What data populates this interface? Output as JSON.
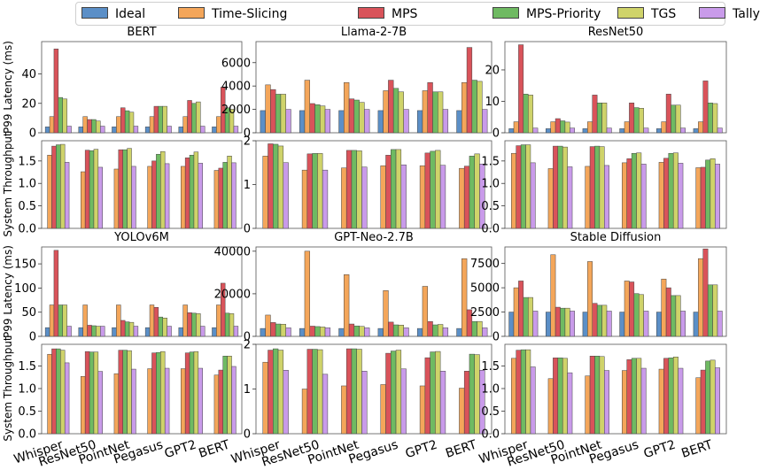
{
  "legend": {
    "items": [
      {
        "label": "Ideal",
        "color": "#5b8fc7"
      },
      {
        "label": "Time-Slicing",
        "color": "#f4a65a"
      },
      {
        "label": "MPS",
        "color": "#d9535a"
      },
      {
        "label": "MPS-Priority",
        "color": "#6fba62"
      },
      {
        "label": "TGS",
        "color": "#cfd36a"
      },
      {
        "label": "Tally",
        "color": "#c99bea"
      }
    ]
  },
  "shared_labels": {
    "latency_ylabel": "P99 Latency (ms)",
    "throughput_ylabel": "System Throughput"
  },
  "chart_data": [
    {
      "type": "bar",
      "metric": "latency",
      "title": "BERT",
      "categories": [
        "Whisper",
        "ResNet50",
        "PointNet",
        "Pegasus",
        "GPT2",
        "BERT"
      ],
      "ylim": [
        0,
        62
      ],
      "yticks": [
        0,
        20,
        40
      ],
      "series": [
        {
          "name": "Ideal",
          "values": [
            4,
            4,
            4,
            4,
            4,
            4
          ]
        },
        {
          "name": "Time-Slicing",
          "values": [
            11,
            11,
            11,
            11,
            11,
            11
          ]
        },
        {
          "name": "MPS",
          "values": [
            57,
            9,
            17,
            18,
            22,
            31
          ]
        },
        {
          "name": "MPS-Priority",
          "values": [
            24,
            9,
            15,
            18,
            20,
            17
          ]
        },
        {
          "name": "TGS",
          "values": [
            23,
            8,
            14,
            18,
            21,
            16
          ]
        },
        {
          "name": "Tally",
          "values": [
            4.5,
            4.5,
            4.5,
            4.5,
            4.5,
            4.5
          ]
        }
      ]
    },
    {
      "type": "bar",
      "metric": "latency",
      "title": "Llama-2-7B",
      "categories": [
        "Whisper",
        "ResNet50",
        "PointNet",
        "Pegasus",
        "GPT2",
        "BERT"
      ],
      "ylim": [
        0,
        7800
      ],
      "yticks": [
        0,
        2000,
        4000,
        6000
      ],
      "series": [
        {
          "name": "Ideal",
          "values": [
            1900,
            1900,
            1900,
            1900,
            1900,
            1900
          ]
        },
        {
          "name": "Time-Slicing",
          "values": [
            4100,
            4500,
            4300,
            3600,
            3600,
            4300
          ]
        },
        {
          "name": "MPS",
          "values": [
            3700,
            2500,
            2900,
            4500,
            4300,
            7300
          ]
        },
        {
          "name": "MPS-Priority",
          "values": [
            3300,
            2400,
            2800,
            3800,
            3500,
            4500
          ]
        },
        {
          "name": "TGS",
          "values": [
            3300,
            2300,
            2600,
            3500,
            3500,
            4400
          ]
        },
        {
          "name": "Tally",
          "values": [
            2000,
            2000,
            2000,
            2000,
            2000,
            2000
          ]
        }
      ]
    },
    {
      "type": "bar",
      "metric": "latency",
      "title": "ResNet50",
      "categories": [
        "Whisper",
        "ResNet50",
        "PointNet",
        "Pegasus",
        "GPT2",
        "BERT"
      ],
      "ylim": [
        0,
        29
      ],
      "yticks": [
        0,
        10,
        20
      ],
      "series": [
        {
          "name": "Ideal",
          "values": [
            1.3,
            1.3,
            1.3,
            1.3,
            1.3,
            1.3
          ]
        },
        {
          "name": "Time-Slicing",
          "values": [
            3.5,
            3.5,
            3.5,
            3.5,
            3.5,
            3.5
          ]
        },
        {
          "name": "MPS",
          "values": [
            28,
            4.5,
            12,
            9.5,
            12.3,
            16.5
          ]
        },
        {
          "name": "MPS-Priority",
          "values": [
            12.3,
            3.8,
            9.5,
            8,
            8.8,
            9.5
          ]
        },
        {
          "name": "TGS",
          "values": [
            12,
            3.4,
            9.5,
            7.8,
            8.8,
            9.3
          ]
        },
        {
          "name": "Tally",
          "values": [
            1.5,
            1.5,
            1.5,
            1.5,
            1.5,
            1.5
          ]
        }
      ]
    },
    {
      "type": "bar",
      "metric": "throughput",
      "categories": [
        "Whisper",
        "ResNet50",
        "PointNet",
        "Pegasus",
        "GPT2",
        "BERT"
      ],
      "ylim": [
        0,
        1.95
      ],
      "yticks": [
        0.0,
        0.5,
        1.0,
        1.5
      ],
      "series": [
        {
          "name": "Time-Slicing",
          "values": [
            1.63,
            1.26,
            1.32,
            1.38,
            1.38,
            1.29
          ]
        },
        {
          "name": "MPS",
          "values": [
            1.83,
            1.74,
            1.75,
            1.5,
            1.57,
            1.34
          ]
        },
        {
          "name": "MPS-Priority",
          "values": [
            1.86,
            1.73,
            1.75,
            1.65,
            1.63,
            1.47
          ]
        },
        {
          "name": "TGS",
          "values": [
            1.87,
            1.76,
            1.78,
            1.71,
            1.7,
            1.61
          ]
        },
        {
          "name": "Tally",
          "values": [
            1.47,
            1.36,
            1.38,
            1.44,
            1.45,
            1.46
          ]
        }
      ]
    },
    {
      "type": "bar",
      "metric": "throughput",
      "categories": [
        "Whisper",
        "ResNet50",
        "PointNet",
        "Pegasus",
        "GPT2",
        "BERT"
      ],
      "ylim": [
        0,
        2.0
      ],
      "yticks": [
        0,
        1,
        2
      ],
      "series": [
        {
          "name": "Time-Slicing",
          "values": [
            1.65,
            1.33,
            1.38,
            1.43,
            1.43,
            1.37
          ]
        },
        {
          "name": "MPS",
          "values": [
            1.93,
            1.7,
            1.78,
            1.67,
            1.72,
            1.42
          ]
        },
        {
          "name": "MPS-Priority",
          "values": [
            1.92,
            1.71,
            1.78,
            1.8,
            1.76,
            1.65
          ]
        },
        {
          "name": "TGS",
          "values": [
            1.88,
            1.71,
            1.77,
            1.8,
            1.78,
            1.7
          ]
        },
        {
          "name": "Tally",
          "values": [
            1.5,
            1.33,
            1.4,
            1.45,
            1.44,
            1.47
          ]
        }
      ]
    },
    {
      "type": "bar",
      "metric": "throughput",
      "categories": [
        "Whisper",
        "ResNet50",
        "PointNet",
        "Pegasus",
        "GPT2",
        "BERT"
      ],
      "ylim": [
        0,
        1.95
      ],
      "yticks": [
        0.0,
        0.5,
        1.0,
        1.5
      ],
      "series": [
        {
          "name": "Time-Slicing",
          "values": [
            1.67,
            1.33,
            1.38,
            1.46,
            1.47,
            1.35
          ]
        },
        {
          "name": "MPS",
          "values": [
            1.84,
            1.83,
            1.82,
            1.55,
            1.56,
            1.36
          ]
        },
        {
          "name": "MPS-Priority",
          "values": [
            1.86,
            1.83,
            1.83,
            1.67,
            1.67,
            1.52
          ]
        },
        {
          "name": "TGS",
          "values": [
            1.86,
            1.81,
            1.82,
            1.68,
            1.68,
            1.55
          ]
        },
        {
          "name": "Tally",
          "values": [
            1.46,
            1.37,
            1.4,
            1.43,
            1.45,
            1.43
          ]
        }
      ]
    },
    {
      "type": "bar",
      "metric": "latency",
      "title": "YOLOv6M",
      "categories": [
        "Whisper",
        "ResNet50",
        "PointNet",
        "Pegasus",
        "GPT2",
        "BERT"
      ],
      "ylim": [
        0,
        185
      ],
      "yticks": [
        0,
        50,
        100,
        150
      ],
      "series": [
        {
          "name": "Ideal",
          "values": [
            18,
            18,
            18,
            18,
            18,
            18
          ]
        },
        {
          "name": "Time-Slicing",
          "values": [
            65,
            65,
            65,
            65,
            65,
            65
          ]
        },
        {
          "name": "MPS",
          "values": [
            178,
            23,
            33,
            60,
            49,
            110
          ]
        },
        {
          "name": "MPS-Priority",
          "values": [
            65,
            22,
            30,
            40,
            48,
            48
          ]
        },
        {
          "name": "TGS",
          "values": [
            65,
            21,
            29,
            38,
            47,
            47
          ]
        },
        {
          "name": "Tally",
          "values": [
            21,
            21,
            21,
            21,
            21,
            21
          ]
        }
      ]
    },
    {
      "type": "bar",
      "metric": "latency",
      "title": "GPT-Neo-2.7B",
      "categories": [
        "Whisper",
        "ResNet50",
        "PointNet",
        "Pegasus",
        "GPT2",
        "BERT"
      ],
      "ylim": [
        0,
        42000
      ],
      "yticks": [
        0,
        20000,
        40000
      ],
      "series": [
        {
          "name": "Ideal",
          "values": [
            3700,
            3700,
            3700,
            3700,
            3700,
            3700
          ]
        },
        {
          "name": "Time-Slicing",
          "values": [
            10000,
            40000,
            29000,
            21500,
            23500,
            36500
          ]
        },
        {
          "name": "MPS",
          "values": [
            6500,
            4800,
            5800,
            6700,
            7000,
            12500
          ]
        },
        {
          "name": "MPS-Priority",
          "values": [
            5800,
            4600,
            4900,
            5400,
            5400,
            7000
          ]
        },
        {
          "name": "TGS",
          "values": [
            5700,
            4400,
            4700,
            5300,
            5600,
            7000
          ]
        },
        {
          "name": "Tally",
          "values": [
            4000,
            4000,
            4000,
            4000,
            4000,
            4000
          ]
        }
      ]
    },
    {
      "type": "bar",
      "metric": "latency",
      "title": "Stable Diffusion",
      "categories": [
        "Whisper",
        "ResNet50",
        "PointNet",
        "Pegasus",
        "GPT2",
        "BERT"
      ],
      "ylim": [
        0,
        9200
      ],
      "yticks": [
        0,
        2500,
        5000,
        7500
      ],
      "series": [
        {
          "name": "Ideal",
          "values": [
            2500,
            2500,
            2500,
            2500,
            2500,
            2500
          ]
        },
        {
          "name": "Time-Slicing",
          "values": [
            5000,
            8400,
            7700,
            5700,
            5900,
            8000
          ]
        },
        {
          "name": "MPS",
          "values": [
            5700,
            3000,
            3400,
            5600,
            5000,
            9000
          ]
        },
        {
          "name": "MPS-Priority",
          "values": [
            4000,
            2900,
            3200,
            4400,
            4200,
            5300
          ]
        },
        {
          "name": "TGS",
          "values": [
            4000,
            2900,
            3200,
            4300,
            4200,
            5300
          ]
        },
        {
          "name": "Tally",
          "values": [
            2600,
            2600,
            2600,
            2600,
            2600,
            2600
          ]
        }
      ]
    },
    {
      "type": "bar",
      "metric": "throughput",
      "categories": [
        "Whisper",
        "ResNet50",
        "PointNet",
        "Pegasus",
        "GPT2",
        "BERT"
      ],
      "ylim": [
        0,
        1.98
      ],
      "yticks": [
        0.0,
        0.5,
        1.0,
        1.5
      ],
      "series": [
        {
          "name": "Time-Slicing",
          "values": [
            1.76,
            1.27,
            1.33,
            1.44,
            1.44,
            1.3
          ]
        },
        {
          "name": "MPS",
          "values": [
            1.88,
            1.82,
            1.85,
            1.79,
            1.79,
            1.41
          ]
        },
        {
          "name": "MPS-Priority",
          "values": [
            1.88,
            1.81,
            1.85,
            1.8,
            1.81,
            1.72
          ]
        },
        {
          "name": "TGS",
          "values": [
            1.85,
            1.81,
            1.84,
            1.82,
            1.82,
            1.72
          ]
        },
        {
          "name": "Tally",
          "values": [
            1.57,
            1.38,
            1.43,
            1.45,
            1.45,
            1.49
          ]
        }
      ]
    },
    {
      "type": "bar",
      "metric": "throughput",
      "categories": [
        "Whisper",
        "ResNet50",
        "PointNet",
        "Pegasus",
        "GPT2",
        "BERT"
      ],
      "ylim": [
        0,
        2.0
      ],
      "yticks": [
        0,
        1,
        2
      ],
      "series": [
        {
          "name": "Time-Slicing",
          "values": [
            1.6,
            1.0,
            1.07,
            1.1,
            1.07,
            1.02
          ]
        },
        {
          "name": "MPS",
          "values": [
            1.87,
            1.89,
            1.9,
            1.8,
            1.7,
            1.4
          ]
        },
        {
          "name": "MPS-Priority",
          "values": [
            1.9,
            1.89,
            1.9,
            1.85,
            1.83,
            1.78
          ]
        },
        {
          "name": "TGS",
          "values": [
            1.87,
            1.88,
            1.89,
            1.87,
            1.84,
            1.77
          ]
        },
        {
          "name": "Tally",
          "values": [
            1.42,
            1.33,
            1.4,
            1.45,
            1.4,
            1.42
          ]
        }
      ]
    },
    {
      "type": "bar",
      "metric": "throughput",
      "categories": [
        "Whisper",
        "ResNet50",
        "PointNet",
        "Pegasus",
        "GPT2",
        "BERT"
      ],
      "ylim": [
        0,
        1.98
      ],
      "yticks": [
        0.0,
        0.5,
        1.0,
        1.5
      ],
      "series": [
        {
          "name": "Time-Slicing",
          "values": [
            1.67,
            1.22,
            1.28,
            1.4,
            1.43,
            1.24
          ]
        },
        {
          "name": "MPS",
          "values": [
            1.85,
            1.68,
            1.72,
            1.64,
            1.67,
            1.41
          ]
        },
        {
          "name": "MPS-Priority",
          "values": [
            1.86,
            1.68,
            1.72,
            1.67,
            1.68,
            1.61
          ]
        },
        {
          "name": "TGS",
          "values": [
            1.86,
            1.67,
            1.71,
            1.67,
            1.7,
            1.63
          ]
        },
        {
          "name": "Tally",
          "values": [
            1.48,
            1.35,
            1.4,
            1.45,
            1.45,
            1.46
          ]
        }
      ]
    }
  ]
}
